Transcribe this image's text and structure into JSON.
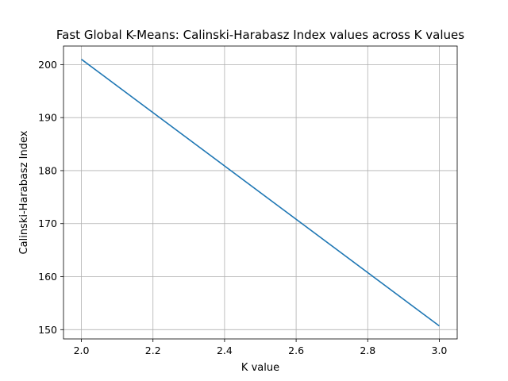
{
  "chart_data": {
    "type": "line",
    "title": "Fast Global K-Means: Calinski-Harabasz Index values across K values",
    "xlabel": "K value",
    "ylabel": "Calinski-Harabasz Index",
    "xlim": [
      1.95,
      3.05
    ],
    "ylim": [
      148.25,
      203.5
    ],
    "x_ticks": [
      2.0,
      2.2,
      2.4,
      2.6,
      2.8,
      3.0
    ],
    "x_tick_labels": [
      "2.0",
      "2.2",
      "2.4",
      "2.6",
      "2.8",
      "3.0"
    ],
    "y_ticks": [
      150,
      160,
      170,
      180,
      190,
      200
    ],
    "y_tick_labels": [
      "150",
      "160",
      "170",
      "180",
      "190",
      "200"
    ],
    "grid": true,
    "series": [
      {
        "x": [
          2,
          3
        ],
        "values": [
          201.0,
          150.7
        ],
        "color": "#1f77b4"
      }
    ]
  }
}
